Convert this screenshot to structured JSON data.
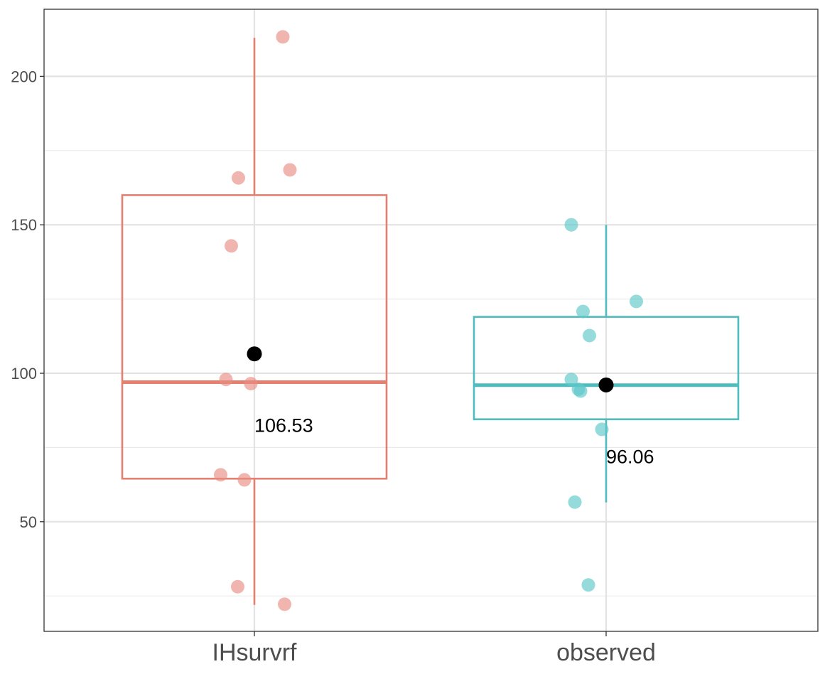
{
  "chart_data": {
    "type": "box",
    "title": "",
    "xlabel": "",
    "ylabel": "",
    "ylim": [
      12,
      221
    ],
    "y_ticks": [
      50,
      100,
      150,
      200
    ],
    "y_minor_ticks": [
      25,
      75,
      125,
      175
    ],
    "grid": true,
    "groups": [
      {
        "name": "IHsurvrf",
        "color": "#E57F70",
        "point_color": "#E88E82",
        "box": {
          "lower_whisker": 22,
          "q1": 64.5,
          "median": 97,
          "q3": 160,
          "upper_whisker": 213
        },
        "mean": 106.53,
        "mean_label": "106.53",
        "points": [
          {
            "jitter": 0.08,
            "y": 213.3
          },
          {
            "jitter": 0.1,
            "y": 168.5
          },
          {
            "jitter": -0.045,
            "y": 165.8
          },
          {
            "jitter": -0.065,
            "y": 142.9
          },
          {
            "jitter": -0.08,
            "y": 97.9
          },
          {
            "jitter": -0.01,
            "y": 96.5
          },
          {
            "jitter": -0.095,
            "y": 65.8
          },
          {
            "jitter": -0.028,
            "y": 64.1
          },
          {
            "jitter": -0.047,
            "y": 28.1
          },
          {
            "jitter": 0.085,
            "y": 22.2
          }
        ]
      },
      {
        "name": "observed",
        "color": "#4FBCBE",
        "point_color": "#5DC7CA",
        "box": {
          "lower_whisker": 56.5,
          "q1": 84.5,
          "median": 96,
          "q3": 119,
          "upper_whisker": 150
        },
        "mean": 96.06,
        "mean_label": "96.06",
        "points": [
          {
            "jitter": -0.098,
            "y": 150.0
          },
          {
            "jitter": 0.085,
            "y": 124.2
          },
          {
            "jitter": -0.065,
            "y": 120.8
          },
          {
            "jitter": -0.047,
            "y": 112.7
          },
          {
            "jitter": -0.098,
            "y": 97.9
          },
          {
            "jitter": -0.078,
            "y": 94.6
          },
          {
            "jitter": -0.072,
            "y": 94.0
          },
          {
            "jitter": -0.012,
            "y": 81.1
          },
          {
            "jitter": -0.088,
            "y": 56.6
          },
          {
            "jitter": -0.05,
            "y": 28.7
          }
        ]
      }
    ]
  }
}
